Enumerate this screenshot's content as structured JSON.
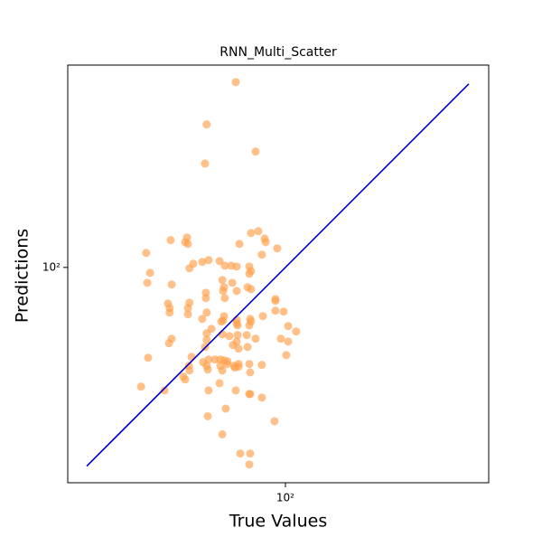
{
  "chart_data": {
    "type": "scatter",
    "title": "RNN_Multi_Scatter",
    "x_label": "True Values",
    "y_label": "Predictions",
    "log_x": true,
    "log_y": true,
    "xlim": [
      28.5,
      323
    ],
    "ylim": [
      28.9,
      321
    ],
    "xticks": [
      {
        "value": 100,
        "label": "10²"
      }
    ],
    "yticks": [
      {
        "value": 100,
        "label": "10²"
      }
    ],
    "series": [
      {
        "color": "#ff9f4a",
        "x": [
          75.1,
          63.5,
          62.9,
          84.2,
          44.8,
          51.6,
          56.1,
          56.7,
          57.0,
          57.5,
          58.8,
          61.9,
          64.2,
          68.4,
          70.5,
          73.2,
          75.5,
          76.7,
          82.0,
          85.5,
          88.7,
          87.3,
          89.2,
          95.4,
          81.2,
          81.2,
          82.0,
          45.8,
          45.1,
          51.9,
          69.5,
          70.2,
          69.8,
          73.6,
          63.2,
          63.2,
          70.5,
          75.5,
          80.4,
          82.0,
          50.8,
          51.3,
          51.3,
          57.5,
          57.0,
          57.0,
          61.9,
          63.5,
          69.8,
          69.1,
          70.2,
          75.5,
          75.5,
          75.9,
          81.6,
          82.0,
          81.2,
          87.8,
          94.4,
          94.4,
          94.4,
          99.0,
          101.6,
          106.4,
          101.6,
          97.4,
          51.1,
          51.9,
          63.5,
          63.5,
          65.3,
          69.5,
          72.4,
          75.9,
          75.5,
          73.9,
          76.3,
          80.4,
          80.0,
          84.2,
          62.9,
          64.2,
          63.5,
          66.6,
          68.7,
          68.7,
          69.5,
          70.2,
          71.3,
          71.6,
          74.3,
          74.7,
          76.3,
          76.3,
          81.2,
          81.6,
          87.3,
          100.5,
          58.2,
          57.3,
          57.5,
          55.5,
          56.1,
          62.2,
          63.9,
          68.4,
          64.2,
          75.1,
          81.2,
          81.6,
          87.3,
          43.5,
          45.3,
          49.8,
          70.9,
          63.9,
          93.9,
          69.5,
          77.1,
          81.6,
          81.2
        ],
        "values": [
          291,
          228,
          182,
          195,
          108.7,
          117.0,
          115.7,
          118.8,
          114.5,
          99.5,
          102.1,
          103.2,
          104.3,
          103.7,
          101.0,
          101.0,
          100.5,
          114.5,
          121.9,
          123.2,
          118.1,
          107.6,
          115.7,
          111.6,
          100.5,
          96.4,
          97.9,
          96.9,
          91.5,
          90.6,
          93.0,
          89.2,
          87.3,
          91.5,
          86.4,
          83.8,
          83.8,
          87.3,
          89.2,
          88.2,
          81.2,
          79.1,
          77.1,
          81.6,
          79.1,
          76.3,
          74.3,
          77.1,
          73.6,
          73.2,
          75.5,
          72.4,
          73.9,
          71.6,
          74.3,
          73.2,
          71.6,
          75.5,
          83.3,
          82.5,
          77.9,
          77.5,
          71.3,
          69.1,
          65.2,
          66.3,
          64.6,
          66.3,
          68.4,
          65.9,
          70.2,
          68.0,
          67.3,
          67.7,
          65.2,
          63.9,
          62.6,
          63.2,
          67.7,
          66.3,
          63.2,
          58.8,
          56.7,
          58.8,
          58.8,
          56.7,
          55.2,
          58.5,
          57.3,
          58.2,
          56.7,
          56.1,
          56.4,
          57.3,
          57.3,
          54.6,
          57.0,
          60.3,
          59.7,
          56.7,
          55.2,
          53.3,
          52.4,
          57.9,
          55.5,
          51.3,
          49.2,
          49.2,
          48.2,
          48.2,
          47.2,
          50.3,
          59.4,
          49.2,
          44.3,
          42.4,
          41.2,
          38.2,
          34.2,
          34.2,
          32.1
        ]
      }
    ],
    "reference_line": {
      "x": [
        31.8,
        288
      ],
      "values": [
        31.8,
        288
      ],
      "color": "#0000cc"
    }
  }
}
